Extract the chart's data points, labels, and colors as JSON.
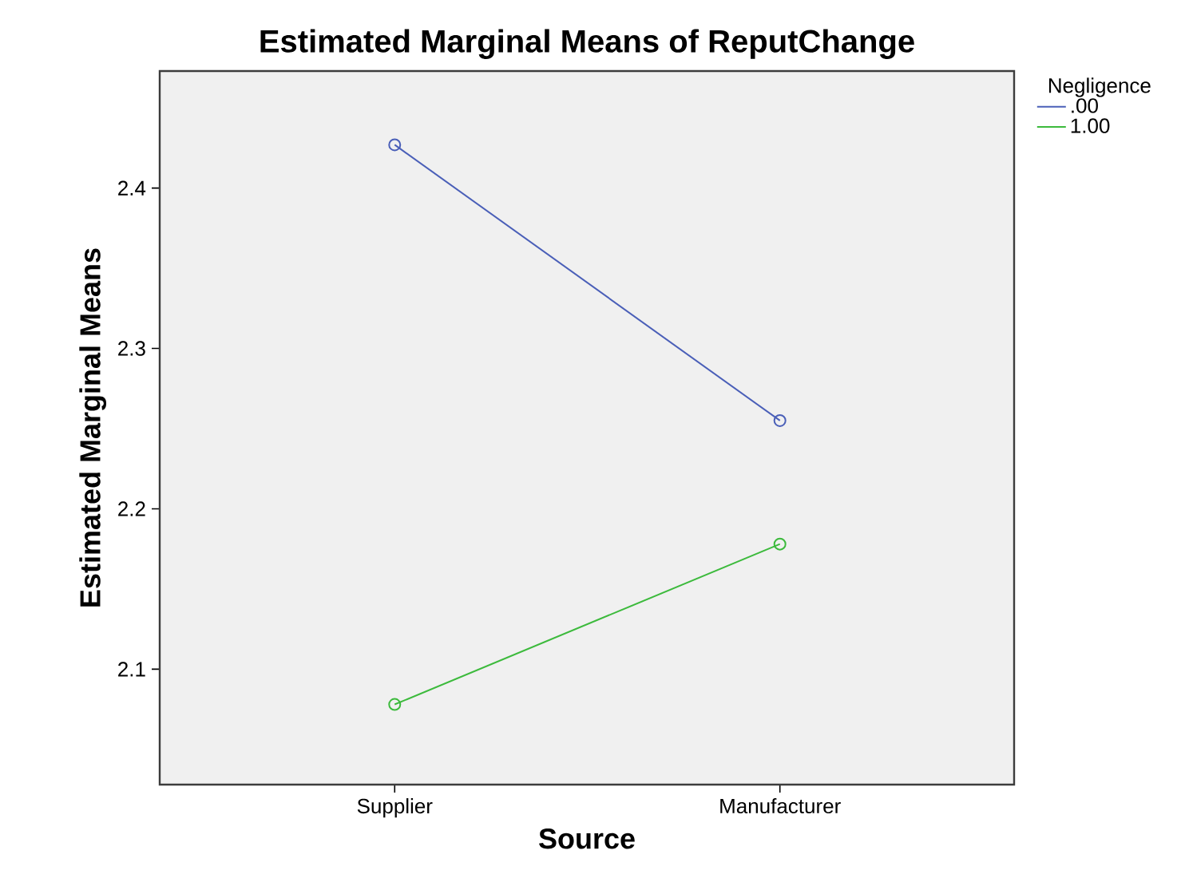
{
  "chart_data": {
    "type": "line",
    "title": "Estimated Marginal Means of ReputChange",
    "xlabel": "Source",
    "ylabel": "Estimated Marginal Means",
    "legend_title": "Negligence",
    "categories": [
      "Supplier",
      "Manufacturer"
    ],
    "series": [
      {
        "name": ".00",
        "color": "#4a5fb8",
        "values": [
          2.427,
          2.255
        ]
      },
      {
        "name": "1.00",
        "color": "#3cba3c",
        "values": [
          2.078,
          2.178
        ]
      }
    ],
    "ylim": [
      2.028,
      2.473
    ],
    "yticks": [
      2.1,
      2.2,
      2.3,
      2.4
    ],
    "marker": "circle",
    "line_style": "solid",
    "legend": "top right",
    "grid": false
  }
}
